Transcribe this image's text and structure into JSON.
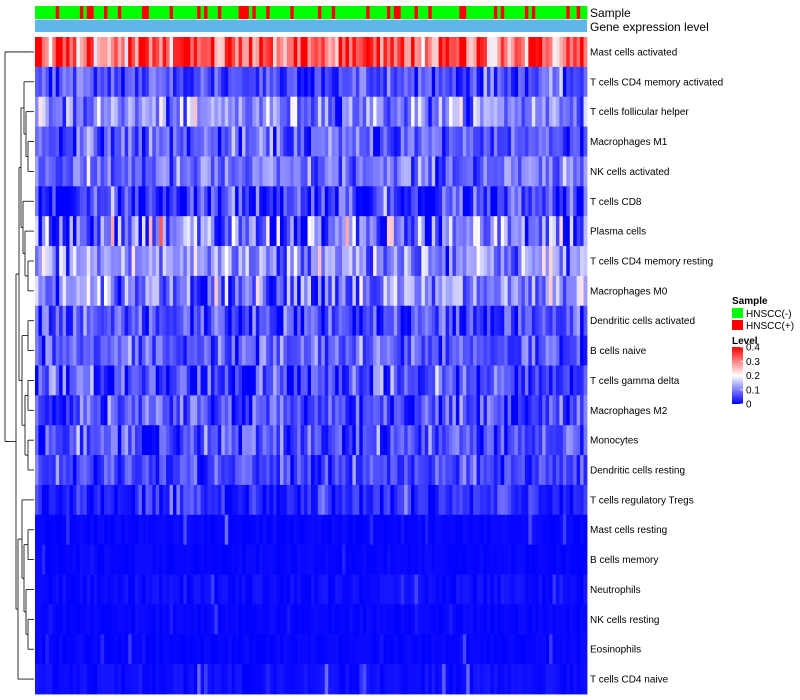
{
  "chart_data": {
    "type": "heatmap",
    "title": "",
    "n_samples": 160,
    "rows": [
      "Mast cells activated",
      "T cells CD4 memory activated",
      "T cells follicular helper",
      "Macrophages M1",
      "NK cells activated",
      "T cells CD8",
      "Plasma cells",
      "T cells CD4 memory resting",
      "Macrophages M0",
      "Dendritic cells activated",
      "B cells naive",
      "T cells gamma delta",
      "Macrophages M2",
      "Monocytes",
      "Dendritic cells resting",
      "T cells regulatory  Tregs",
      "Mast cells resting",
      "B cells memory",
      "Neutrophils",
      "NK cells resting",
      "Eosinophils",
      "T cells CD4 naive"
    ],
    "row_means": [
      0.32,
      0.06,
      0.11,
      0.07,
      0.08,
      0.05,
      0.08,
      0.12,
      0.1,
      0.05,
      0.07,
      0.05,
      0.06,
      0.06,
      0.05,
      0.03,
      0.01,
      0.01,
      0.02,
      0.01,
      0.01,
      0.02
    ],
    "row_spreads": [
      0.07,
      0.04,
      0.05,
      0.04,
      0.04,
      0.05,
      0.08,
      0.06,
      0.06,
      0.04,
      0.04,
      0.05,
      0.04,
      0.04,
      0.03,
      0.03,
      0.03,
      0.02,
      0.02,
      0.02,
      0.02,
      0.04
    ],
    "annotations": {
      "sample_label": "Sample",
      "level_label": "Gene expression level"
    },
    "sample_groups": [
      {
        "name": "HNSCC(-)",
        "color": "#00ff00",
        "share": 0.72
      },
      {
        "name": "HNSCC(+)",
        "color": "#ff0000",
        "share": 0.28
      }
    ],
    "level_bar_color": "#5fb6e8",
    "color_scale": {
      "title": "Level",
      "min": 0,
      "max": 0.4,
      "ticks": [
        "0.4",
        "0.3",
        "0.2",
        "0.1",
        "0"
      ],
      "tick_values": [
        0.4,
        0.3,
        0.2,
        0.1,
        0
      ],
      "colors": [
        "#0000ff",
        "#ffffff",
        "#ff0000"
      ]
    },
    "legend": {
      "sample_title": "Sample",
      "sample_items": [
        "HNSCC(-)",
        "HNSCC(+)"
      ],
      "level_title": "Level"
    }
  }
}
